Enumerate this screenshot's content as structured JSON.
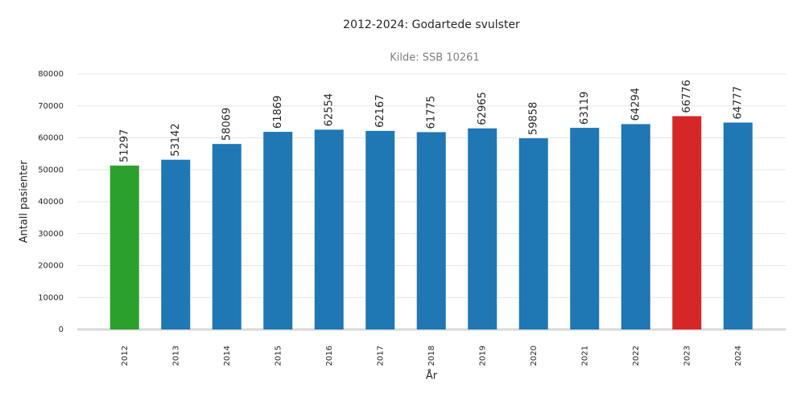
{
  "chart_data": {
    "type": "bar",
    "title": "2012-2024: Godartede svulster",
    "subtitle": "Kilde: SSB 10261",
    "x_label": "År",
    "y_label": "Antall pasienter",
    "categories": [
      "2012",
      "2013",
      "2014",
      "2015",
      "2016",
      "2017",
      "2018",
      "2019",
      "2020",
      "2021",
      "2022",
      "2023",
      "2024"
    ],
    "values": [
      51297,
      53142,
      58069,
      61869,
      62554,
      62167,
      61775,
      62965,
      59858,
      63119,
      64294,
      66776,
      64777
    ],
    "colors": [
      "#2ca02c",
      "#1f77b4",
      "#1f77b4",
      "#1f77b4",
      "#1f77b4",
      "#1f77b4",
      "#1f77b4",
      "#1f77b4",
      "#1f77b4",
      "#1f77b4",
      "#1f77b4",
      "#d62728",
      "#1f77b4"
    ],
    "ylim": [
      0,
      80000
    ],
    "yticks": [
      0,
      10000,
      20000,
      30000,
      40000,
      50000,
      60000,
      70000,
      80000
    ],
    "grid": true
  }
}
